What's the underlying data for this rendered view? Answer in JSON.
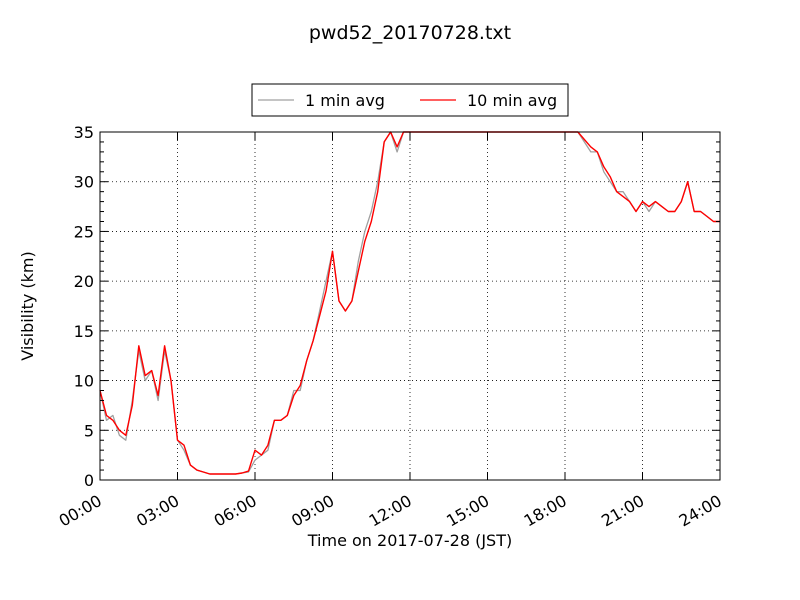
{
  "chart_data": {
    "type": "line",
    "title": "pwd52_20170728.txt",
    "xlabel": "Time on 2017-07-28 (JST)",
    "ylabel": "Visibility (km)",
    "xlim": [
      "00:00",
      "24:00"
    ],
    "ylim": [
      0,
      35
    ],
    "x_ticks": [
      "00:00",
      "03:00",
      "06:00",
      "09:00",
      "12:00",
      "15:00",
      "18:00",
      "21:00",
      "24:00"
    ],
    "y_ticks": [
      "0",
      "5",
      "10",
      "15",
      "20",
      "25",
      "30",
      "35"
    ],
    "grid": true,
    "legend_position": "top-center, above plot",
    "legend": [
      "1 min avg",
      "10 min avg"
    ],
    "series": [
      {
        "name": "1 min avg",
        "color": "#a0a0a0",
        "x_hours": [
          0,
          0.25,
          0.5,
          0.75,
          1,
          1.25,
          1.5,
          1.75,
          2,
          2.25,
          2.5,
          2.75,
          3,
          3.25,
          3.5,
          3.75,
          4,
          4.25,
          4.5,
          4.75,
          5,
          5.25,
          5.5,
          5.75,
          6,
          6.25,
          6.5,
          6.75,
          7,
          7.25,
          7.5,
          7.75,
          8,
          8.25,
          8.5,
          8.75,
          9,
          9.25,
          9.5,
          9.75,
          10,
          10.25,
          10.5,
          10.75,
          11,
          11.25,
          11.5,
          11.75,
          12,
          12.5,
          13,
          13.5,
          14,
          14.5,
          15,
          15.5,
          16,
          16.5,
          17,
          17.5,
          18,
          18.5,
          19,
          19.25,
          19.5,
          19.75,
          20,
          20.25,
          20.5,
          20.75,
          21,
          21.25,
          21.5,
          21.75,
          22,
          22.25,
          22.5,
          22.75,
          23,
          23.25,
          23.5,
          23.75,
          24
        ],
        "values": [
          9,
          6,
          6.5,
          4.5,
          4,
          8,
          13,
          10,
          11,
          8,
          13,
          10,
          4,
          3,
          1.5,
          1,
          0.8,
          0.6,
          0.6,
          0.6,
          0.6,
          0.6,
          0.7,
          0.8,
          2,
          2.5,
          3,
          6,
          6,
          6.5,
          9,
          9,
          12,
          14,
          17,
          20,
          23,
          18,
          17,
          18,
          22,
          25,
          27,
          30,
          34,
          35,
          33,
          35,
          35,
          35,
          35,
          35,
          35,
          35,
          35,
          35,
          35,
          35,
          35,
          35,
          35,
          35,
          33,
          33,
          31,
          30,
          29,
          29,
          28,
          27,
          28,
          27,
          28,
          27.5,
          27,
          27,
          28,
          30,
          27,
          27,
          26.5,
          26,
          26
        ]
      },
      {
        "name": "10 min avg",
        "color": "#ff0000",
        "x_hours": [
          0,
          0.25,
          0.5,
          0.75,
          1,
          1.25,
          1.5,
          1.75,
          2,
          2.25,
          2.5,
          2.75,
          3,
          3.25,
          3.5,
          3.75,
          4,
          4.25,
          4.5,
          4.75,
          5,
          5.25,
          5.5,
          5.75,
          6,
          6.25,
          6.5,
          6.75,
          7,
          7.25,
          7.5,
          7.75,
          8,
          8.25,
          8.5,
          8.75,
          9,
          9.25,
          9.5,
          9.75,
          10,
          10.25,
          10.5,
          10.75,
          11,
          11.25,
          11.5,
          11.75,
          12,
          12.5,
          13,
          13.5,
          14,
          14.5,
          15,
          15.5,
          16,
          16.5,
          17,
          17.5,
          18,
          18.5,
          19,
          19.25,
          19.5,
          19.75,
          20,
          20.25,
          20.5,
          20.75,
          21,
          21.25,
          21.5,
          21.75,
          22,
          22.25,
          22.5,
          22.75,
          23,
          23.25,
          23.5,
          23.75,
          24
        ],
        "values": [
          9,
          6.5,
          6,
          5,
          4.5,
          7.5,
          13.5,
          10.5,
          11,
          8.5,
          13.5,
          10,
          4,
          3.5,
          1.5,
          1,
          0.8,
          0.6,
          0.6,
          0.6,
          0.6,
          0.6,
          0.7,
          0.9,
          3,
          2.5,
          3.5,
          6,
          6,
          6.5,
          8.5,
          9.5,
          12,
          14,
          16.5,
          19,
          23,
          18,
          17,
          18,
          21,
          24,
          26,
          29,
          34,
          35,
          33.5,
          35,
          35,
          35,
          35,
          35,
          35,
          35,
          35,
          35,
          35,
          35,
          35,
          35,
          35,
          35,
          33.5,
          33,
          31.5,
          30.5,
          29,
          28.5,
          28,
          27,
          28,
          27.5,
          28,
          27.5,
          27,
          27,
          28,
          30,
          27,
          27,
          26.5,
          26,
          26
        ]
      }
    ]
  }
}
